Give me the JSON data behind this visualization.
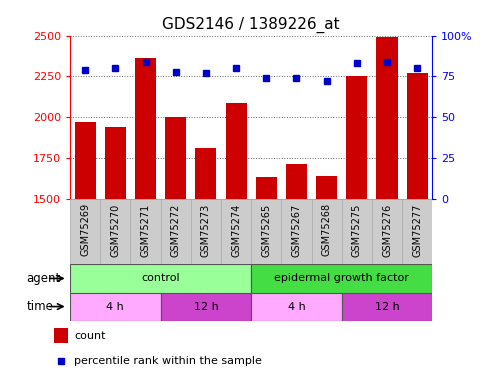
{
  "title": "GDS2146 / 1389226_at",
  "samples": [
    "GSM75269",
    "GSM75270",
    "GSM75271",
    "GSM75272",
    "GSM75273",
    "GSM75274",
    "GSM75265",
    "GSM75267",
    "GSM75268",
    "GSM75275",
    "GSM75276",
    "GSM75277"
  ],
  "counts": [
    1970,
    1940,
    2360,
    2000,
    1810,
    2090,
    1635,
    1710,
    1640,
    2250,
    2490,
    2270
  ],
  "percentiles": [
    79,
    80,
    84,
    78,
    77,
    80,
    74,
    74,
    72,
    83,
    84,
    80
  ],
  "ylim_left": [
    1500,
    2500
  ],
  "ylim_right": [
    0,
    100
  ],
  "yticks_left": [
    1500,
    1750,
    2000,
    2250,
    2500
  ],
  "yticks_right": [
    0,
    25,
    50,
    75,
    100
  ],
  "bar_color": "#cc0000",
  "dot_color": "#0000cc",
  "agent_row": [
    {
      "label": "control",
      "start": 0,
      "end": 6,
      "color": "#99ff99",
      "edge_color": "#555555"
    },
    {
      "label": "epidermal growth factor",
      "start": 6,
      "end": 12,
      "color": "#44dd44",
      "edge_color": "#555555"
    }
  ],
  "time_row": [
    {
      "label": "4 h",
      "start": 0,
      "end": 3,
      "color": "#ffaaff",
      "edge_color": "#555555"
    },
    {
      "label": "12 h",
      "start": 3,
      "end": 6,
      "color": "#cc44cc",
      "edge_color": "#555555"
    },
    {
      "label": "4 h",
      "start": 6,
      "end": 9,
      "color": "#ffaaff",
      "edge_color": "#555555"
    },
    {
      "label": "12 h",
      "start": 9,
      "end": 12,
      "color": "#cc44cc",
      "edge_color": "#555555"
    }
  ],
  "xlabel_agent": "agent",
  "xlabel_time": "time",
  "legend_count_label": "count",
  "legend_pct_label": "percentile rank within the sample",
  "sample_bg_color": "#cccccc",
  "sample_edge_color": "#aaaaaa",
  "plot_bg_color": "#ffffff",
  "fig_bg_color": "#ffffff"
}
